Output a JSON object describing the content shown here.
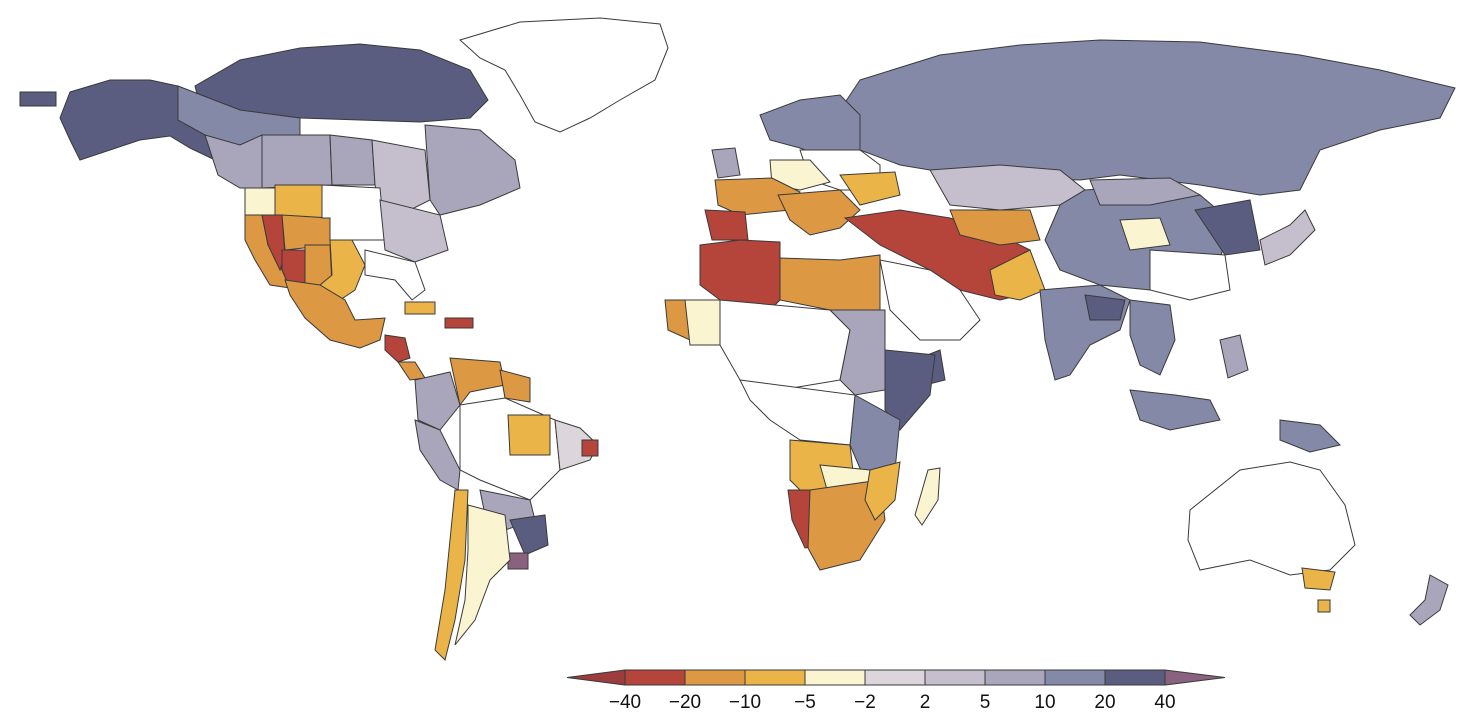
{
  "map": {
    "colors": {
      "lt_neg40": "#9c3c3c",
      "neg40_neg20": "#b5443b",
      "neg20_neg10": "#dd9843",
      "neg10_neg5": "#eab448",
      "neg5_neg2": "#fbf4d0",
      "neg2_2": "#dcd6dc",
      "2_5": "#c5bfcd",
      "5_10": "#a9a6bc",
      "10_20": "#8489a7",
      "20_40": "#5a5d80",
      "gt_40": "#8a6280",
      "nodata": "#ffffff",
      "border": "#3a3a3a"
    }
  },
  "legend": {
    "ticks": [
      "−40",
      "−20",
      "−10",
      "−5",
      "−2",
      "2",
      "5",
      "10",
      "20",
      "40"
    ],
    "bins": [
      {
        "color": "#b5443b"
      },
      {
        "color": "#dd9843"
      },
      {
        "color": "#eab448"
      },
      {
        "color": "#fbf4d0"
      },
      {
        "color": "#dcd6dc"
      },
      {
        "color": "#c5bfcd"
      },
      {
        "color": "#a9a6bc"
      },
      {
        "color": "#8489a7"
      },
      {
        "color": "#5a5d80"
      }
    ],
    "low_arrow_color": "#9c3c3c",
    "high_arrow_color": "#8a6280"
  }
}
